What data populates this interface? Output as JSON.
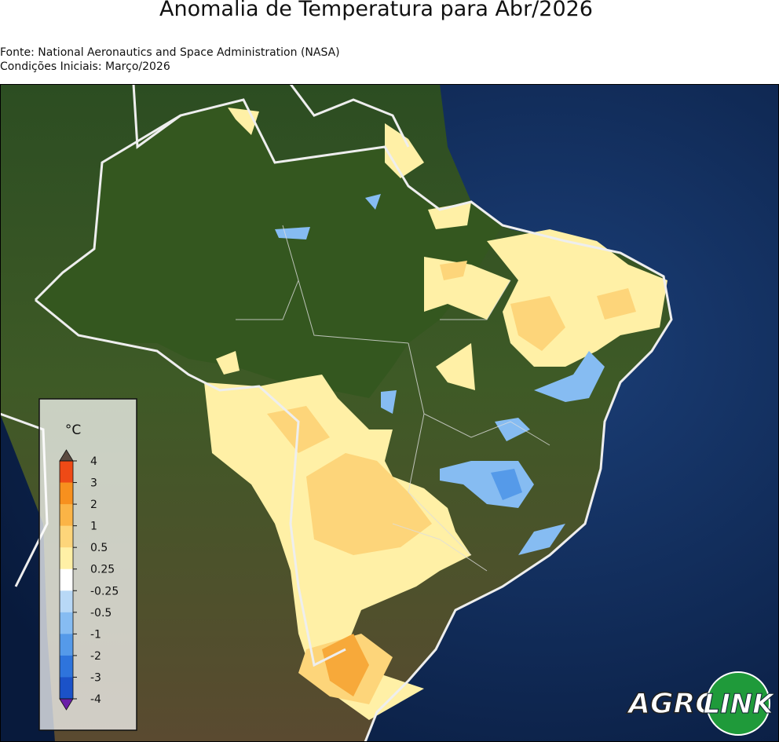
{
  "header": {
    "title": "Anomalia de Temperatura para Abr/2026",
    "source": "Fonte: National Aeronautics and Space Administration (NASA)",
    "initial_conditions": "Condições Iniciais: Março/2026"
  },
  "legend": {
    "unit": "°C",
    "ticks": [
      "4",
      "3",
      "2",
      "1",
      "0.5",
      "0.25",
      "-0.25",
      "-0.5",
      "-1",
      "-2",
      "-3",
      "-4"
    ],
    "colors": [
      "#ee4a16",
      "#f7901e",
      "#fbb446",
      "#fdd57a",
      "#fff0a6",
      "#ffffff",
      "#b8d8f6",
      "#86bcf2",
      "#559ae9",
      "#2e74dc",
      "#1b52c8"
    ],
    "over_color": "#5a4a40",
    "under_color": "#6a1fa8"
  },
  "logo": {
    "left": "AGRO",
    "right": "LINK"
  }
}
